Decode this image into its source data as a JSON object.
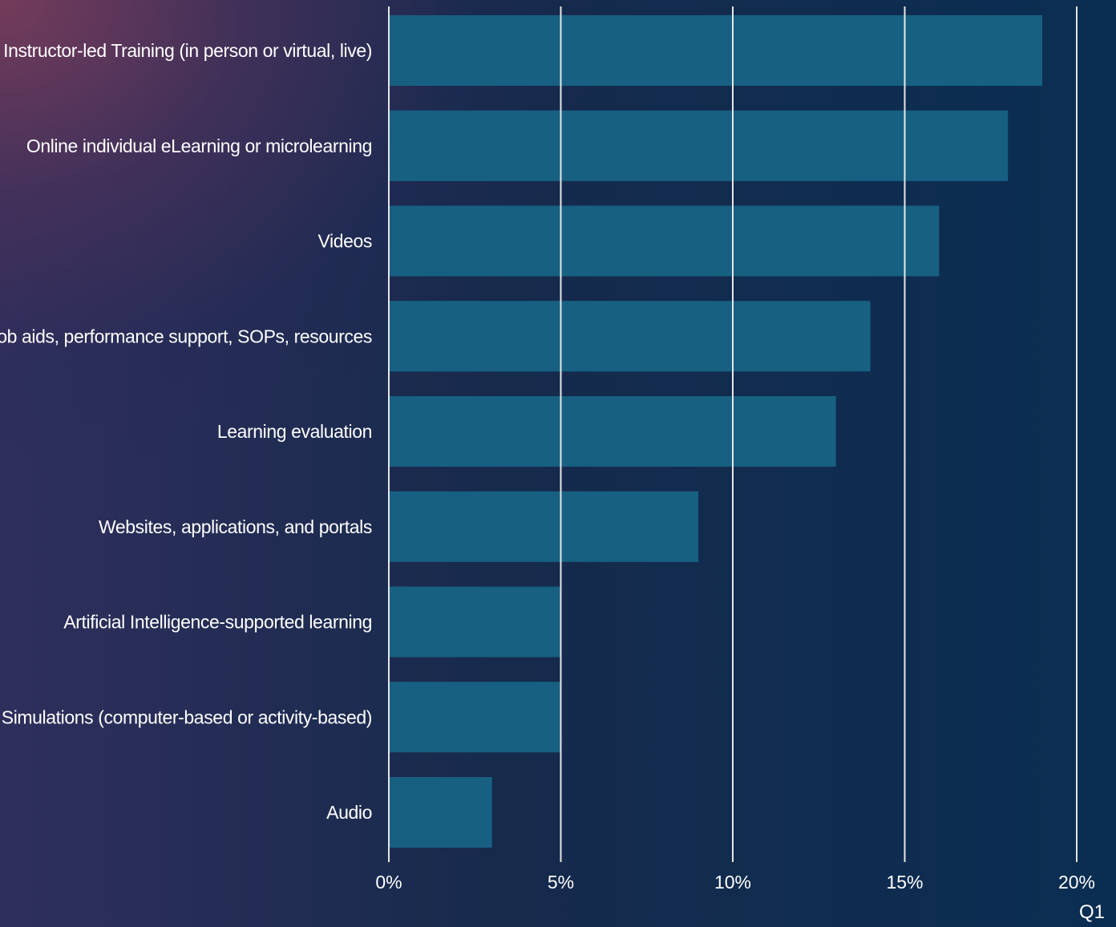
{
  "corner_label": "Q1",
  "colors": {
    "bar": "#176082",
    "gridline": "#e6e6e6",
    "text": "#ffffff"
  },
  "chart_data": {
    "type": "bar",
    "orientation": "horizontal",
    "categories": [
      "Instructor-led Training (in person or virtual, live)",
      "Online individual eLearning or microlearning",
      "Videos",
      "Job aids, performance support, SOPs, resources",
      "Learning evaluation",
      "Websites, applications, and portals",
      "Artificial Intelligence-supported learning",
      "Simulations (computer-based or activity-based)",
      "Audio"
    ],
    "values": [
      0.19,
      0.18,
      0.16,
      0.14,
      0.13,
      0.09,
      0.05,
      0.05,
      0.03
    ],
    "xlim": [
      0,
      0.2
    ],
    "xticks": [
      {
        "value": 0,
        "label": "0%"
      },
      {
        "value": 0.05,
        "label": "5%"
      },
      {
        "value": 0.1,
        "label": "10%"
      },
      {
        "value": 0.15,
        "label": "15%"
      },
      {
        "value": 0.2,
        "label": "20%"
      }
    ],
    "grid": true,
    "legend": "none"
  }
}
